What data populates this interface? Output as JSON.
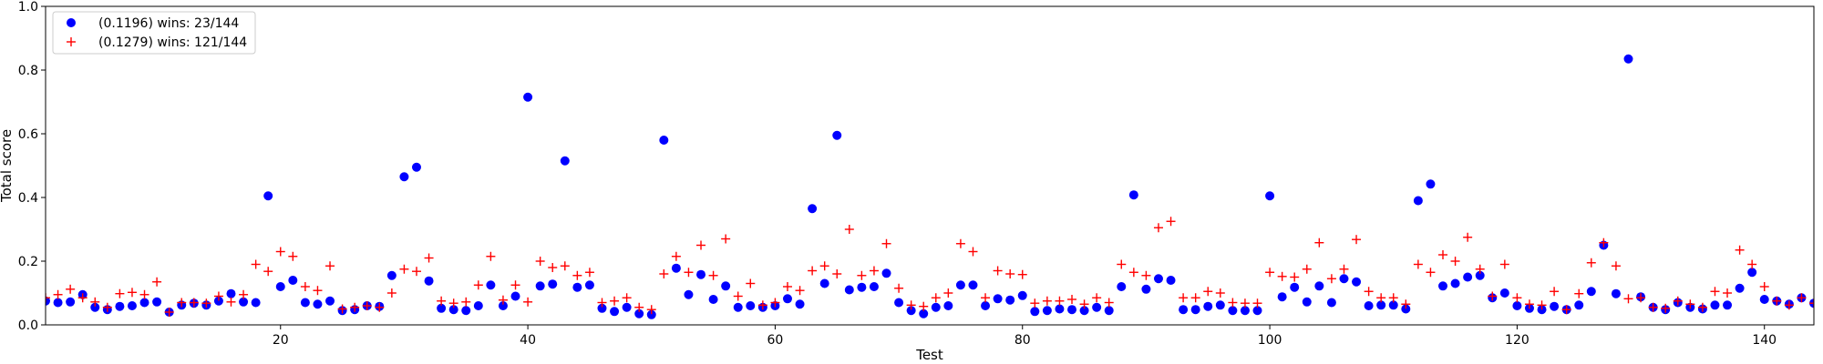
{
  "chart_data": {
    "type": "scatter",
    "xlabel": "Test",
    "ylabel": "Total score",
    "xlim": [
      1,
      144
    ],
    "ylim": [
      0,
      1.0
    ],
    "xticks": [
      20,
      40,
      60,
      80,
      100,
      120,
      140
    ],
    "xtick_labels": [
      "20",
      "40",
      "60",
      "80",
      "100",
      "120",
      "140"
    ],
    "yticks": [
      0,
      0.2,
      0.4,
      0.6,
      0.8,
      1.0
    ],
    "ytick_labels": [
      "0.0",
      "0.2",
      "0.4",
      "0.6",
      "0.8",
      "1.0"
    ],
    "grid": false,
    "legend_position": "top-left",
    "series": [
      {
        "name": "(0.1196) wins: 23/144",
        "marker": "circle",
        "color": "#0000ff",
        "x": [
          1,
          2,
          3,
          4,
          5,
          6,
          7,
          8,
          9,
          10,
          11,
          12,
          13,
          14,
          15,
          16,
          17,
          18,
          19,
          20,
          21,
          22,
          23,
          24,
          25,
          26,
          27,
          28,
          29,
          30,
          31,
          32,
          33,
          34,
          35,
          36,
          37,
          38,
          39,
          40,
          41,
          42,
          43,
          44,
          45,
          46,
          47,
          48,
          49,
          50,
          51,
          52,
          53,
          54,
          55,
          56,
          57,
          58,
          59,
          60,
          61,
          62,
          63,
          64,
          65,
          66,
          67,
          68,
          69,
          70,
          71,
          72,
          73,
          74,
          75,
          76,
          77,
          78,
          79,
          80,
          81,
          82,
          83,
          84,
          85,
          86,
          87,
          88,
          89,
          90,
          91,
          92,
          93,
          94,
          95,
          96,
          97,
          98,
          99,
          100,
          101,
          102,
          103,
          104,
          105,
          106,
          107,
          108,
          109,
          110,
          111,
          112,
          113,
          114,
          115,
          116,
          117,
          118,
          119,
          120,
          121,
          122,
          123,
          124,
          125,
          126,
          127,
          128,
          129,
          130,
          131,
          132,
          133,
          134,
          135,
          136,
          137,
          138,
          139,
          140,
          141,
          142,
          143,
          144
        ],
        "y": [
          0.075,
          0.07,
          0.072,
          0.095,
          0.055,
          0.048,
          0.058,
          0.06,
          0.07,
          0.072,
          0.04,
          0.062,
          0.068,
          0.062,
          0.075,
          0.098,
          0.072,
          0.07,
          0.405,
          0.12,
          0.14,
          0.07,
          0.065,
          0.075,
          0.045,
          0.048,
          0.06,
          0.058,
          0.155,
          0.465,
          0.495,
          0.138,
          0.052,
          0.048,
          0.045,
          0.06,
          0.125,
          0.06,
          0.09,
          0.715,
          0.122,
          0.128,
          0.515,
          0.118,
          0.125,
          0.052,
          0.042,
          0.055,
          0.035,
          0.032,
          0.58,
          0.178,
          0.095,
          0.158,
          0.08,
          0.122,
          0.055,
          0.06,
          0.055,
          0.06,
          0.082,
          0.065,
          0.365,
          0.13,
          0.595,
          0.11,
          0.118,
          0.12,
          0.162,
          0.07,
          0.045,
          0.035,
          0.055,
          0.06,
          0.125,
          0.125,
          0.06,
          0.082,
          0.078,
          0.092,
          0.042,
          0.045,
          0.05,
          0.048,
          0.045,
          0.055,
          0.045,
          0.12,
          0.408,
          0.112,
          0.145,
          0.14,
          0.048,
          0.048,
          0.058,
          0.062,
          0.045,
          0.045,
          0.045,
          0.405,
          0.088,
          0.118,
          0.072,
          0.122,
          0.07,
          0.145,
          0.135,
          0.06,
          0.062,
          0.062,
          0.05,
          0.39,
          0.442,
          0.122,
          0.13,
          0.15,
          0.155,
          0.085,
          0.1,
          0.06,
          0.052,
          0.048,
          0.058,
          0.048,
          0.062,
          0.105,
          0.25,
          0.098,
          0.835,
          0.088,
          0.055,
          0.048,
          0.07,
          0.055,
          0.05,
          0.062,
          0.062,
          0.115,
          0.165,
          0.08,
          0.075,
          0.065,
          0.085,
          0.068
        ]
      },
      {
        "name": "(0.1279) wins: 121/144",
        "marker": "plus",
        "color": "#ff0000",
        "x": [
          1,
          2,
          3,
          4,
          5,
          6,
          7,
          8,
          9,
          10,
          11,
          12,
          13,
          14,
          15,
          16,
          17,
          18,
          19,
          20,
          21,
          22,
          23,
          24,
          25,
          26,
          27,
          28,
          29,
          30,
          31,
          32,
          33,
          34,
          35,
          36,
          37,
          38,
          39,
          40,
          41,
          42,
          43,
          44,
          45,
          46,
          47,
          48,
          49,
          50,
          51,
          52,
          53,
          54,
          55,
          56,
          57,
          58,
          59,
          60,
          61,
          62,
          63,
          64,
          65,
          66,
          67,
          68,
          69,
          70,
          71,
          72,
          73,
          74,
          75,
          76,
          77,
          78,
          79,
          80,
          81,
          82,
          83,
          84,
          85,
          86,
          87,
          88,
          89,
          90,
          91,
          92,
          93,
          94,
          95,
          96,
          97,
          98,
          99,
          100,
          101,
          102,
          103,
          104,
          105,
          106,
          107,
          108,
          109,
          110,
          111,
          112,
          113,
          114,
          115,
          116,
          117,
          118,
          119,
          120,
          121,
          122,
          123,
          124,
          125,
          126,
          127,
          128,
          129,
          130,
          131,
          132,
          133,
          134,
          135,
          136,
          137,
          138,
          139,
          140,
          141,
          142,
          143,
          144
        ],
        "y": [
          0.085,
          0.095,
          0.112,
          0.085,
          0.072,
          0.055,
          0.098,
          0.102,
          0.095,
          0.135,
          0.04,
          0.07,
          0.07,
          0.068,
          0.09,
          0.072,
          0.095,
          0.19,
          0.168,
          0.23,
          0.215,
          0.12,
          0.108,
          0.185,
          0.05,
          0.055,
          0.06,
          0.055,
          0.1,
          0.175,
          0.168,
          0.21,
          0.075,
          0.068,
          0.072,
          0.125,
          0.215,
          0.078,
          0.125,
          0.072,
          0.2,
          0.18,
          0.185,
          0.155,
          0.165,
          0.07,
          0.075,
          0.085,
          0.055,
          0.048,
          0.16,
          0.215,
          0.165,
          0.25,
          0.155,
          0.27,
          0.09,
          0.13,
          0.062,
          0.07,
          0.12,
          0.108,
          0.17,
          0.185,
          0.16,
          0.3,
          0.155,
          0.17,
          0.255,
          0.115,
          0.062,
          0.058,
          0.085,
          0.1,
          0.255,
          0.23,
          0.085,
          0.17,
          0.16,
          0.158,
          0.068,
          0.075,
          0.075,
          0.08,
          0.065,
          0.085,
          0.07,
          0.19,
          0.165,
          0.155,
          0.305,
          0.325,
          0.085,
          0.085,
          0.105,
          0.1,
          0.07,
          0.068,
          0.068,
          0.165,
          0.152,
          0.15,
          0.175,
          0.258,
          0.145,
          0.175,
          0.268,
          0.105,
          0.085,
          0.085,
          0.065,
          0.19,
          0.165,
          0.22,
          0.2,
          0.275,
          0.175,
          0.09,
          0.19,
          0.085,
          0.065,
          0.062,
          0.105,
          0.048,
          0.098,
          0.195,
          0.258,
          0.185,
          0.082,
          0.085,
          0.055,
          0.052,
          0.075,
          0.065,
          0.055,
          0.105,
          0.1,
          0.235,
          0.19,
          0.12,
          0.075,
          0.062,
          0.085,
          0.068
        ]
      }
    ]
  }
}
